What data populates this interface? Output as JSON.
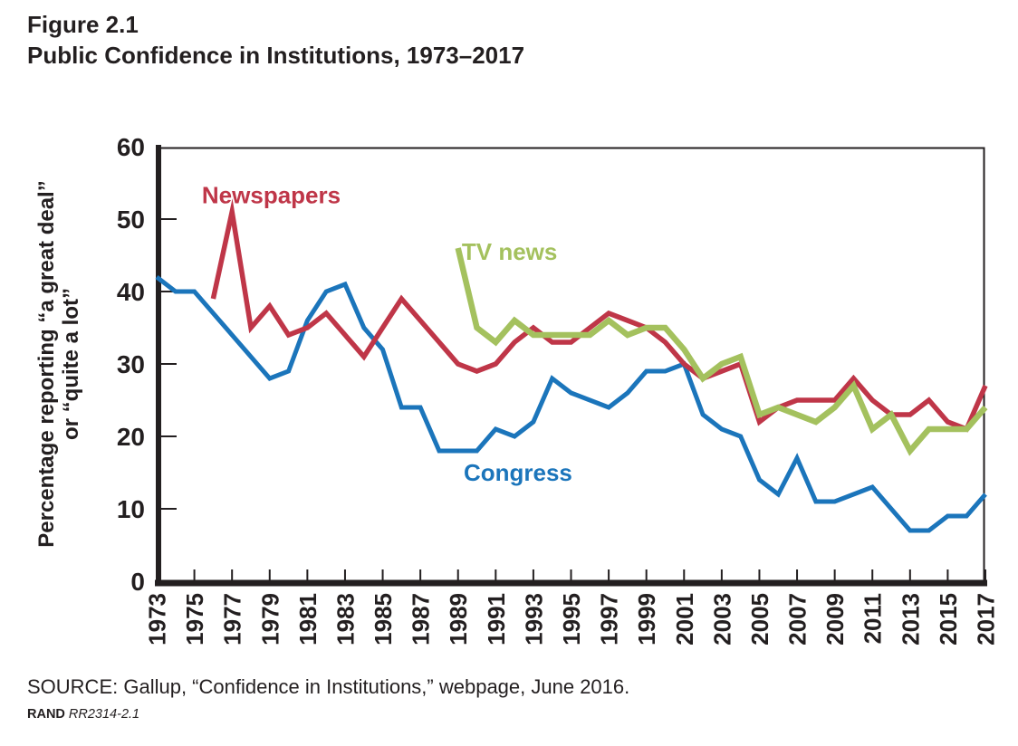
{
  "figure": {
    "label": "Figure 2.1",
    "title": "Public Confidence in Institutions, 1973–2017"
  },
  "source": {
    "line": "SOURCE: Gallup, “Confidence in Institutions,” webpage, June 2016.",
    "brand": "RAND",
    "report_id": "RR2314-2.1"
  },
  "chart_data": {
    "type": "line",
    "title": "Public Confidence in Institutions, 1973–2017",
    "ylabel_lines": [
      "Percentage reporting “a great deal”",
      "or “quite a lot”"
    ],
    "xlabel": "",
    "ylim": [
      0,
      60
    ],
    "xlim": [
      1973,
      2017
    ],
    "ytick_values": [
      0,
      10,
      20,
      30,
      40,
      50,
      60
    ],
    "ytick_dash_values": [
      10,
      20,
      30,
      40,
      50
    ],
    "xtick_years": [
      1973,
      1975,
      1977,
      1979,
      1981,
      1983,
      1985,
      1987,
      1989,
      1991,
      1993,
      1995,
      1997,
      1999,
      2001,
      2003,
      2005,
      2007,
      2009,
      2011,
      2013,
      2015,
      2017
    ],
    "grid": false,
    "legend": "inline-labels",
    "axis_color": "#231f20",
    "series": [
      {
        "name": "Congress",
        "key": "congress",
        "color": "#1b75bb",
        "stroke_width": 5,
        "label_anchor": {
          "year": 1989.3,
          "value": 13.9
        },
        "points": [
          [
            1973,
            42
          ],
          [
            1974,
            40
          ],
          [
            1975,
            40
          ],
          [
            1976,
            37
          ],
          [
            1977,
            34
          ],
          [
            1978,
            31
          ],
          [
            1979,
            28
          ],
          [
            1980,
            29
          ],
          [
            1981,
            36
          ],
          [
            1982,
            40
          ],
          [
            1983,
            41
          ],
          [
            1984,
            35
          ],
          [
            1985,
            32
          ],
          [
            1986,
            24
          ],
          [
            1987,
            24
          ],
          [
            1988,
            18
          ],
          [
            1989,
            18
          ],
          [
            1990,
            18
          ],
          [
            1991,
            21
          ],
          [
            1992,
            20
          ],
          [
            1993,
            22
          ],
          [
            1994,
            28
          ],
          [
            1995,
            26
          ],
          [
            1996,
            25
          ],
          [
            1997,
            24
          ],
          [
            1998,
            26
          ],
          [
            1999,
            29
          ],
          [
            2000,
            29
          ],
          [
            2001,
            30
          ],
          [
            2002,
            23
          ],
          [
            2003,
            21
          ],
          [
            2004,
            20
          ],
          [
            2005,
            14
          ],
          [
            2006,
            12
          ],
          [
            2007,
            17
          ],
          [
            2008,
            11
          ],
          [
            2009,
            11
          ],
          [
            2010,
            12
          ],
          [
            2011,
            13
          ],
          [
            2012,
            10
          ],
          [
            2013,
            7
          ],
          [
            2014,
            7
          ],
          [
            2015,
            9
          ],
          [
            2016,
            9
          ],
          [
            2017,
            12
          ]
        ]
      },
      {
        "name": "Newspapers",
        "key": "newspapers",
        "color": "#bf3648",
        "stroke_width": 5.5,
        "label_anchor": {
          "year": 1975.4,
          "value": 52.2
        },
        "points": [
          [
            1976,
            39
          ],
          [
            1977,
            51
          ],
          [
            1978,
            35
          ],
          [
            1979,
            38
          ],
          [
            1980,
            34
          ],
          [
            1981,
            35
          ],
          [
            1982,
            37
          ],
          [
            1983,
            34
          ],
          [
            1984,
            31
          ],
          [
            1985,
            35
          ],
          [
            1986,
            39
          ],
          [
            1987,
            36
          ],
          [
            1988,
            33
          ],
          [
            1989,
            30
          ],
          [
            1990,
            29
          ],
          [
            1991,
            30
          ],
          [
            1992,
            33
          ],
          [
            1993,
            35
          ],
          [
            1994,
            33
          ],
          [
            1995,
            33
          ],
          [
            1996,
            35
          ],
          [
            1997,
            37
          ],
          [
            1998,
            36
          ],
          [
            1999,
            35
          ],
          [
            2000,
            33
          ],
          [
            2001,
            30
          ],
          [
            2002,
            28
          ],
          [
            2003,
            29
          ],
          [
            2004,
            30
          ],
          [
            2005,
            22
          ],
          [
            2006,
            24
          ],
          [
            2007,
            25
          ],
          [
            2008,
            25
          ],
          [
            2009,
            25
          ],
          [
            2010,
            28
          ],
          [
            2011,
            25
          ],
          [
            2012,
            23
          ],
          [
            2013,
            23
          ],
          [
            2014,
            25
          ],
          [
            2015,
            22
          ],
          [
            2016,
            21
          ],
          [
            2017,
            27
          ]
        ]
      },
      {
        "name": "TV news",
        "key": "tv-news",
        "color": "#a4c15e",
        "stroke_width": 6.5,
        "label_anchor": {
          "year": 1989.2,
          "value": 44.4
        },
        "points": [
          [
            1989,
            46
          ],
          [
            1990,
            35
          ],
          [
            1991,
            33
          ],
          [
            1992,
            36
          ],
          [
            1993,
            34
          ],
          [
            1994,
            34
          ],
          [
            1995,
            34
          ],
          [
            1996,
            34
          ],
          [
            1997,
            36
          ],
          [
            1998,
            34
          ],
          [
            1999,
            35
          ],
          [
            2000,
            35
          ],
          [
            2001,
            32
          ],
          [
            2002,
            28
          ],
          [
            2003,
            30
          ],
          [
            2004,
            31
          ],
          [
            2005,
            23
          ],
          [
            2006,
            24
          ],
          [
            2007,
            23
          ],
          [
            2008,
            22
          ],
          [
            2009,
            24
          ],
          [
            2010,
            27
          ],
          [
            2011,
            21
          ],
          [
            2012,
            23
          ],
          [
            2013,
            18
          ],
          [
            2014,
            21
          ],
          [
            2015,
            21
          ],
          [
            2016,
            21
          ],
          [
            2017,
            24
          ]
        ]
      }
    ]
  }
}
